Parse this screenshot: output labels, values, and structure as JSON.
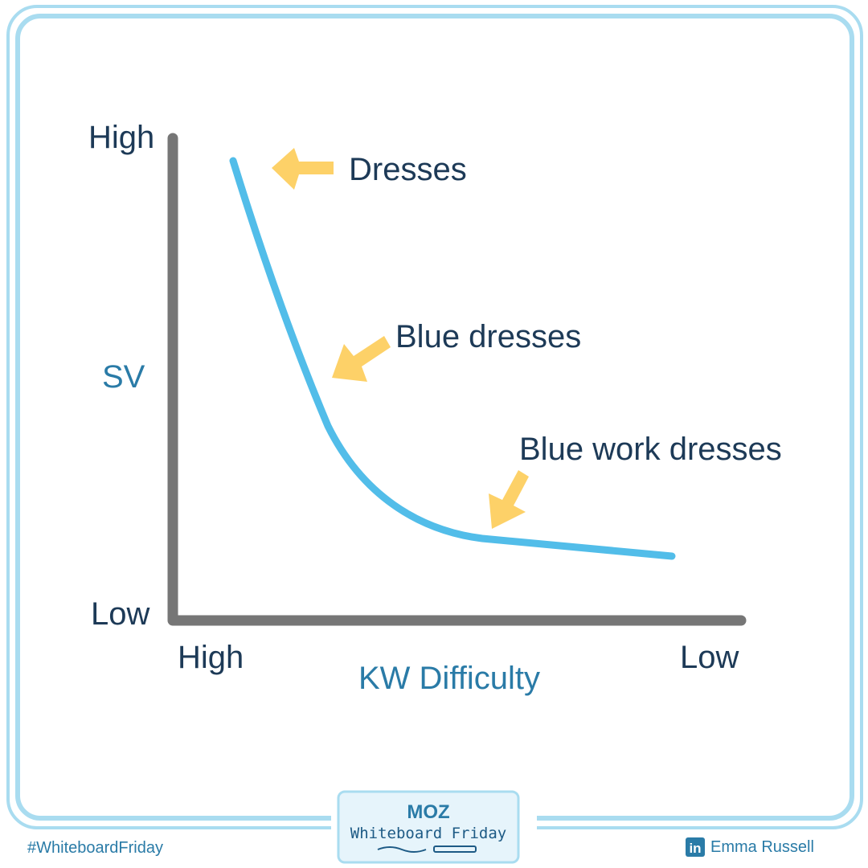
{
  "y_axis": {
    "label": "SV",
    "high": "High",
    "low": "Low"
  },
  "x_axis": {
    "label": "KW Difficulty",
    "high": "High",
    "low": "Low"
  },
  "annotations": [
    "Dresses",
    "Blue dresses",
    "Blue work dresses"
  ],
  "footer": {
    "hashtag": "#WhiteboardFriday",
    "logo": "MOZ",
    "logo_subtitle": "Whiteboard Friday",
    "author_icon": "in",
    "author": "Emma Russell"
  }
}
